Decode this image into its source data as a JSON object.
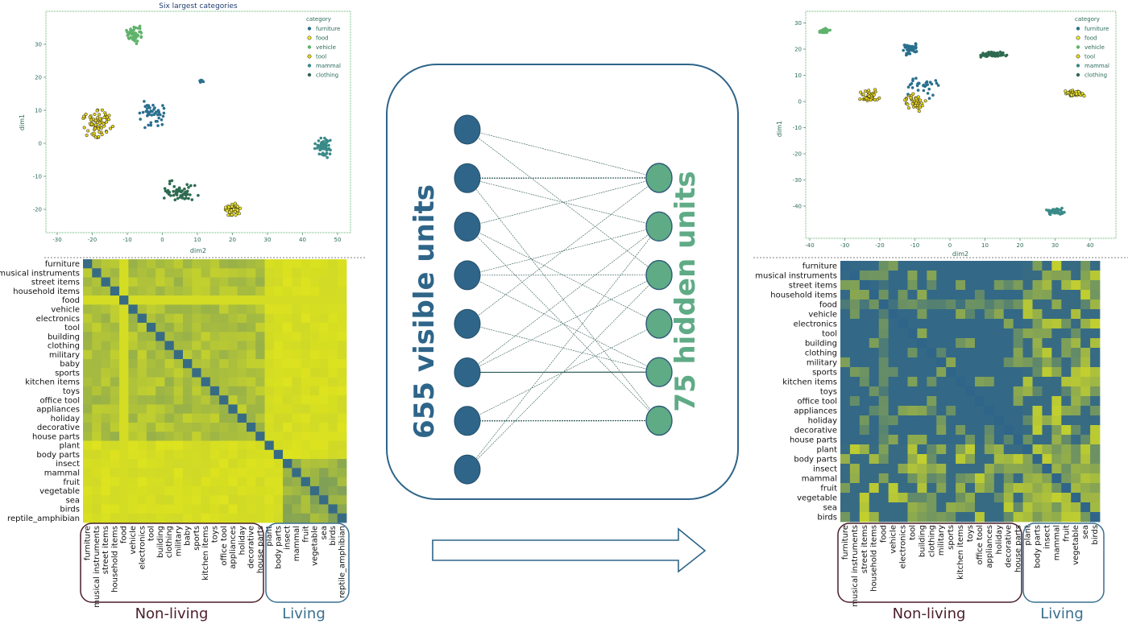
{
  "colors": {
    "furniture": "#2a6f8e",
    "food": "#f2e825",
    "vehicle": "#5fb26b",
    "tool": "#e8d51a",
    "mammal": "#3a8a88",
    "clothing": "#2e6a50",
    "visible_node": "#2e6589",
    "hidden_node": "#5fab86",
    "nonliving_box": "#4a1e2a",
    "living_box": "#3a6f8f",
    "heat_low": "#2e6589",
    "heat_high": "#dde31e"
  },
  "left_scatter": {
    "title": "Six largest categories",
    "xlabel": "dim2",
    "ylabel": "dim1",
    "legend_title": "category",
    "legend": [
      "furniture",
      "food",
      "vehicle",
      "tool",
      "mammal",
      "clothing"
    ],
    "x_ticks": [
      "-30",
      "-20",
      "-10",
      "0",
      "10",
      "20",
      "30",
      "40",
      "50"
    ],
    "y_ticks": [
      "30",
      "20",
      "10",
      "0",
      "-10",
      "-20"
    ]
  },
  "right_scatter": {
    "xlabel": "dim2",
    "ylabel": "dim1",
    "legend_title": "category",
    "legend": [
      "furniture",
      "food",
      "vehicle",
      "tool",
      "mammal",
      "clothing"
    ],
    "x_ticks": [
      "-40",
      "-30",
      "-20",
      "-10",
      "0",
      "10",
      "20",
      "30",
      "40"
    ],
    "y_ticks": [
      "30",
      "20",
      "10",
      "0",
      "-10",
      "-20",
      "-30",
      "-40"
    ]
  },
  "left_heatmap": {
    "labels": [
      "furniture",
      "musical instruments",
      "street items",
      "household items",
      "food",
      "vehicle",
      "electronics",
      "tool",
      "building",
      "clothing",
      "military",
      "baby",
      "sports",
      "kitchen items",
      "toys",
      "office tool",
      "appliances",
      "holiday",
      "decorative",
      "house parts",
      "plant",
      "body parts",
      "insect",
      "mammal",
      "fruit",
      "vegetable",
      "sea",
      "birds",
      "reptile_amphibian"
    ]
  },
  "right_heatmap": {
    "labels": [
      "furniture",
      "musical instruments",
      "street items",
      "household items",
      "food",
      "vehicle",
      "electronics",
      "tool",
      "building",
      "clothing",
      "military",
      "sports",
      "kitchen items",
      "toys",
      "office tool",
      "appliances",
      "holiday",
      "decorative",
      "house parts",
      "plant",
      "body parts",
      "insect",
      "mammal",
      "fruit",
      "vegetable",
      "sea",
      "birds"
    ]
  },
  "network": {
    "visible_label": "655 visible units",
    "hidden_label": "75 hidden units",
    "visible_count": 8,
    "hidden_count": 6
  },
  "groups": {
    "nonliving": "Non-living",
    "living": "Living"
  }
}
